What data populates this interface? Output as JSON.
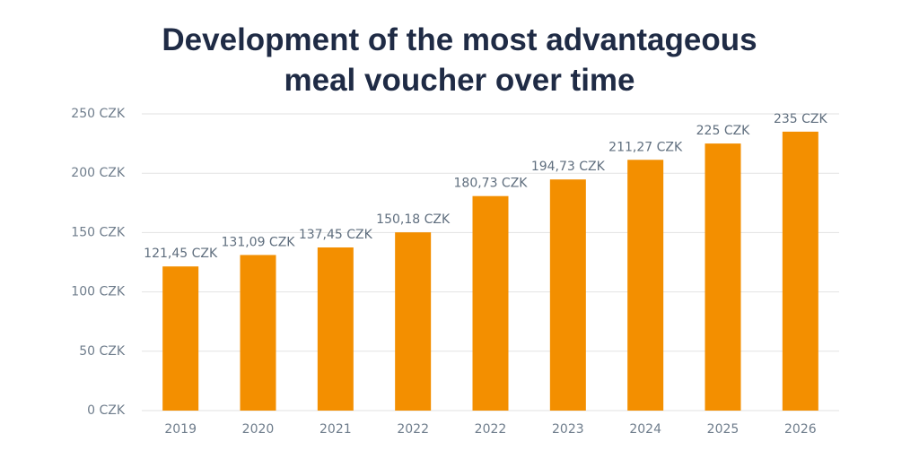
{
  "chart_data": {
    "type": "bar",
    "title": "Development of the most advantageous meal voucher over time",
    "categories": [
      "2019",
      "2020",
      "2021",
      "2022",
      "2022",
      "2023",
      "2024",
      "2025",
      "2026"
    ],
    "values": [
      121.45,
      131.09,
      137.45,
      150.18,
      180.73,
      194.73,
      211.27,
      225,
      235
    ],
    "value_labels": [
      "121,45 CZK",
      "131,09 CZK",
      "137,45 CZK",
      "150,18 CZK",
      "180,73 CZK",
      "194,73 CZK",
      "211,27 CZK",
      "225 CZK",
      "235 CZK"
    ],
    "color": "#f38f00",
    "ylim": [
      0,
      250
    ],
    "yticks": [
      {
        "value": 0,
        "label": "0 CZK"
      },
      {
        "value": 50,
        "label": "50 CZK"
      },
      {
        "value": 100,
        "label": "100 CZK"
      },
      {
        "value": 150,
        "label": "150 CZK"
      },
      {
        "value": 200,
        "label": "200 CZK"
      },
      {
        "value": 250,
        "label": "250 CZK"
      }
    ],
    "grid": true
  }
}
